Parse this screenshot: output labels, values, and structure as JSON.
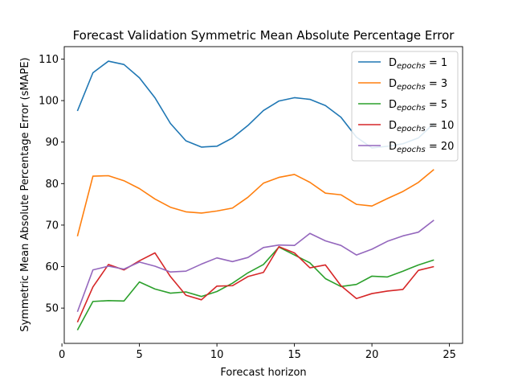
{
  "chart_data": {
    "type": "line",
    "title": "Forecast Validation Symmetric Mean Absolute Percentage Error",
    "xlabel": "Forecast horizon",
    "ylabel": "Symmetric Mean Absolute Percentage Error (sMAPE)",
    "xlim": [
      0.15,
      25.85
    ],
    "ylim": [
      41.5,
      113.0
    ],
    "xticks": [
      0,
      5,
      10,
      15,
      20,
      25
    ],
    "yticks": [
      50,
      60,
      70,
      80,
      90,
      100,
      110
    ],
    "grid": false,
    "legend_position": "top-right",
    "x": [
      1,
      2,
      3,
      4,
      5,
      6,
      7,
      8,
      9,
      10,
      11,
      12,
      13,
      14,
      15,
      16,
      17,
      18,
      19,
      20,
      21,
      22,
      23,
      24
    ],
    "series": [
      {
        "name": "D_epochs = 1",
        "label_main": "D",
        "label_sub": "epochs",
        "label_rest": " = 1",
        "color": "#1f77b4",
        "values": [
          97.5,
          106.7,
          109.5,
          108.7,
          105.5,
          100.7,
          94.5,
          90.3,
          88.8,
          89.0,
          91.0,
          94.0,
          97.6,
          99.9,
          100.7,
          100.3,
          98.8,
          96.0,
          91.2,
          88.6,
          89.0,
          89.6,
          91.0,
          94.5
        ]
      },
      {
        "name": "D_epochs = 3",
        "label_main": "D",
        "label_sub": "epochs",
        "label_rest": " = 3",
        "color": "#ff7f0e",
        "values": [
          67.3,
          81.8,
          81.9,
          80.7,
          78.8,
          76.3,
          74.3,
          73.2,
          72.9,
          73.4,
          74.1,
          76.7,
          80.1,
          81.5,
          82.2,
          80.3,
          77.7,
          77.3,
          75.0,
          74.6,
          76.4,
          78.1,
          80.3,
          83.4
        ]
      },
      {
        "name": "D_epochs = 5",
        "label_main": "D",
        "label_sub": "epochs",
        "label_rest": " = 5",
        "color": "#2ca02c",
        "values": [
          44.7,
          51.6,
          51.8,
          51.7,
          56.3,
          54.6,
          53.6,
          53.9,
          52.8,
          54.0,
          56.0,
          58.5,
          60.5,
          64.7,
          62.8,
          60.9,
          57.1,
          55.2,
          55.7,
          57.7,
          57.5,
          58.9,
          60.4,
          61.6
        ]
      },
      {
        "name": "D_epochs = 10",
        "label_main": "D",
        "label_sub": "epochs",
        "label_rest": " = 10",
        "color": "#d62728",
        "values": [
          46.6,
          55.1,
          60.5,
          59.2,
          61.4,
          63.3,
          57.6,
          53.1,
          52.0,
          55.3,
          55.4,
          57.6,
          58.6,
          64.8,
          63.3,
          59.7,
          60.4,
          55.4,
          52.3,
          53.5,
          54.1,
          54.5,
          59.1,
          60.0
        ]
      },
      {
        "name": "D_epochs = 20",
        "label_main": "D",
        "label_sub": "epochs",
        "label_rest": " = 20",
        "color": "#9467bd",
        "values": [
          49.1,
          59.2,
          60.1,
          59.4,
          61.1,
          60.1,
          58.7,
          58.9,
          60.6,
          62.1,
          61.2,
          62.2,
          64.6,
          65.2,
          65.1,
          68.0,
          66.2,
          65.1,
          62.8,
          64.2,
          66.1,
          67.4,
          68.3,
          71.2
        ]
      }
    ]
  }
}
